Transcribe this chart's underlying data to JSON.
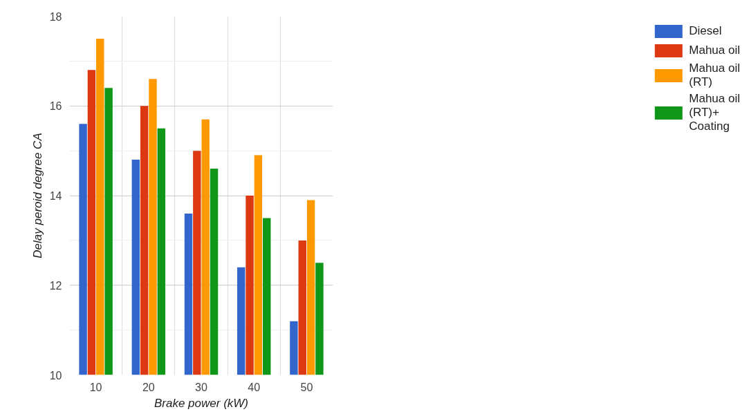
{
  "chart_data": {
    "type": "bar",
    "xlabel": "Brake power (kW)",
    "ylabel": "Delay peroid degree CA",
    "categories": [
      "10",
      "20",
      "30",
      "40",
      "50"
    ],
    "series": [
      {
        "name": "Diesel",
        "color": "#3366cc",
        "values": [
          15.6,
          14.8,
          13.6,
          12.4,
          11.2
        ]
      },
      {
        "name": "Mahua oil",
        "color": "#dc3912",
        "values": [
          16.8,
          16.0,
          15.0,
          14.0,
          13.0
        ]
      },
      {
        "name": "Mahua oil (RT)",
        "color": "#ff9900",
        "values": [
          17.5,
          16.6,
          15.7,
          14.9,
          13.9
        ]
      },
      {
        "name": "Mahua oil (RT)+ Coating",
        "color": "#109618",
        "values": [
          16.4,
          15.5,
          14.6,
          13.5,
          12.5
        ]
      }
    ],
    "ylim": [
      10,
      18
    ],
    "yticks": [
      10,
      12,
      14,
      16,
      18
    ],
    "grid": true,
    "legend": "right"
  }
}
